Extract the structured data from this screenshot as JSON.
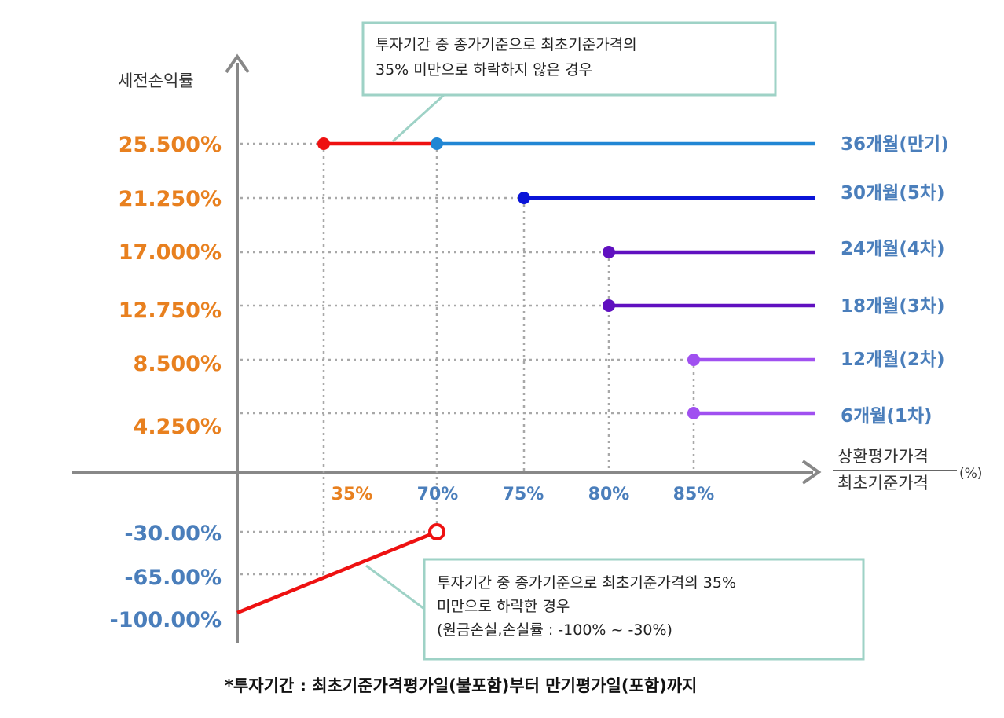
{
  "chart_data": {
    "type": "line",
    "ylabel": "세전손익률",
    "xlabel_numerator": "상환평가가격",
    "xlabel_denominator": "최초기준가격",
    "xlabel_unit": "(%)",
    "y_tick_labels": [
      "25.500%",
      "21.250%",
      "17.000%",
      "12.750%",
      "8.500%",
      "4.250%"
    ],
    "y_negative_tick_labels": [
      "-30.00%",
      "-65.00%",
      "-100.00%"
    ],
    "x_tick_labels": [
      "35%",
      "70%",
      "75%",
      "80%",
      "85%"
    ],
    "series": [
      {
        "name": "36개월(만기)",
        "barrier": 70,
        "return": 25.5,
        "color": "#2186D4"
      },
      {
        "name": "30개월(5차)",
        "barrier": 75,
        "return": 21.25,
        "color": "#0A14D8"
      },
      {
        "name": "24개월(4차)",
        "barrier": 80,
        "return": 17.0,
        "color": "#6010C0"
      },
      {
        "name": "18개월(3차)",
        "barrier": 80,
        "return": 12.75,
        "color": "#6010C0"
      },
      {
        "name": "12개월(2차)",
        "barrier": 85,
        "return": 8.5,
        "color": "#A050F0"
      },
      {
        "name": "6개월(1차)",
        "barrier": 85,
        "return": 4.25,
        "color": "#A050F0"
      }
    ],
    "knock_in_segment": {
      "from_x": 35,
      "to_x": 70,
      "return": 25.5,
      "color": "#EE1111"
    },
    "loss_segment": {
      "from_x": 0,
      "from_return": -100,
      "to_x": 70,
      "to_return": -30,
      "color": "#EE1111"
    },
    "annotations": {
      "top_box_line1": "투자기간 중 종가기준으로 최초기준가격의",
      "top_box_line2": "35% 미만으로 하락하지 않은 경우",
      "bottom_box_line1": "투자기간 중 종가기준으로 최초기준가격의 35%",
      "bottom_box_line2": "미만으로 하락한 경우",
      "bottom_box_line3": "(원금손실,손실률 : -100% ~ -30%)"
    },
    "footnote": "*투자기간 : 최초기준가격평가일(불포함)부터 만기평가일(포함)까지"
  }
}
